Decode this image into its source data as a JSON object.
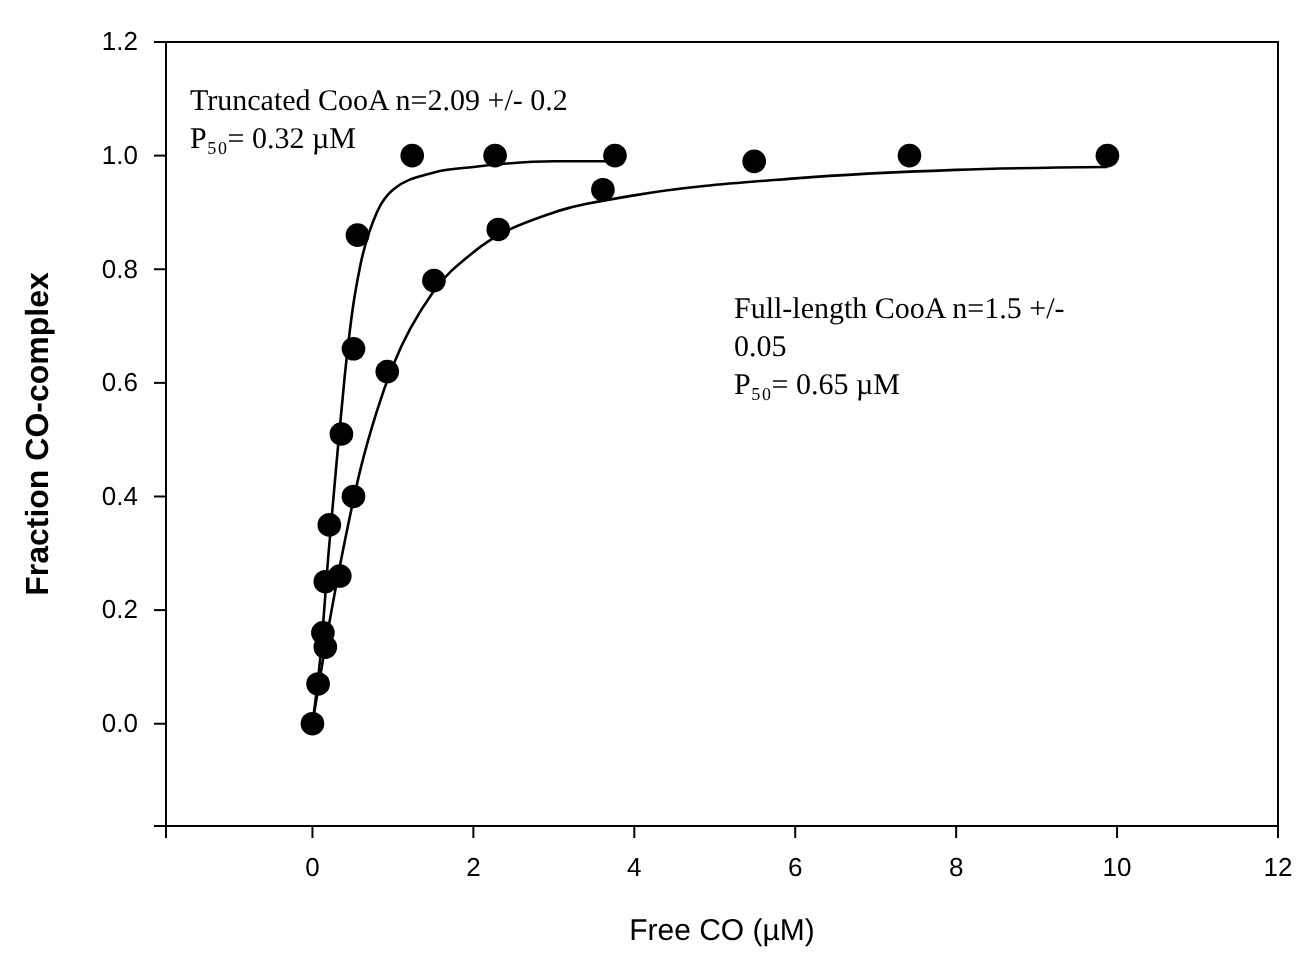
{
  "chart_data": {
    "type": "scatter",
    "xlabel": "Free CO (µM)",
    "ylabel": "Fraction CO-complex",
    "xlim": [
      -1.82,
      12
    ],
    "xticks": [
      0,
      2,
      4,
      6,
      8,
      10,
      12
    ],
    "ylim": [
      -0.18,
      1.2
    ],
    "yticks": [
      {
        "value": 0,
        "label": "0.0"
      },
      {
        "value": 0.2,
        "label": "0.2"
      },
      {
        "value": 0.4,
        "label": "0.4"
      },
      {
        "value": 0.6,
        "label": "0.6"
      },
      {
        "value": 0.8,
        "label": "0.8"
      },
      {
        "value": 1,
        "label": "1.0"
      },
      {
        "value": 1.2,
        "label": "1.2"
      }
    ],
    "grid": false,
    "marker": "circle",
    "series": [
      {
        "color": "#000000",
        "x": [
          0,
          0.07,
          0.13,
          0.16,
          0.21,
          0.36,
          0.51,
          0.56,
          1.24,
          2.27,
          3.76
        ],
        "values": [
          0,
          0.07,
          0.16,
          0.25,
          0.35,
          0.51,
          0.66,
          0.86,
          1.0,
          1.0,
          1.0
        ]
      },
      {
        "color": "#000000",
        "x": [
          0.16,
          0.34,
          0.51,
          0.93,
          1.51,
          2.31,
          3.61,
          5.49,
          7.42,
          9.88
        ],
        "values": [
          0.135,
          0.26,
          0.4,
          0.62,
          0.78,
          0.87,
          0.94,
          0.99,
          1.0,
          1.0
        ]
      },
      {
        "type": "line",
        "color": "#000000",
        "marker": "none",
        "line_style": "solid",
        "x": [
          0,
          0.1,
          0.2,
          0.3,
          0.4,
          0.5,
          0.6,
          0.8,
          1,
          1.5,
          2,
          3,
          3.76
        ],
        "values": [
          0,
          0.12,
          0.3,
          0.46,
          0.61,
          0.73,
          0.81,
          0.9,
          0.94,
          0.97,
          0.98,
          0.99,
          0.99
        ]
      },
      {
        "type": "line",
        "color": "#000000",
        "marker": "none",
        "line_style": "solid",
        "x": [
          0,
          0.2,
          0.4,
          0.6,
          0.8,
          1,
          1.5,
          2,
          3,
          4,
          6,
          8,
          9.88
        ],
        "values": [
          0,
          0.17,
          0.32,
          0.45,
          0.55,
          0.63,
          0.76,
          0.83,
          0.9,
          0.93,
          0.96,
          0.975,
          0.98
        ]
      }
    ],
    "annotations": [
      "Truncated CooA  n=2.09 +/- 0.2\nP₅₀= 0.32 µM",
      "Full-length CooA n=1.5 +/-\n0.05\nP₅₀= 0.65 µM"
    ]
  }
}
